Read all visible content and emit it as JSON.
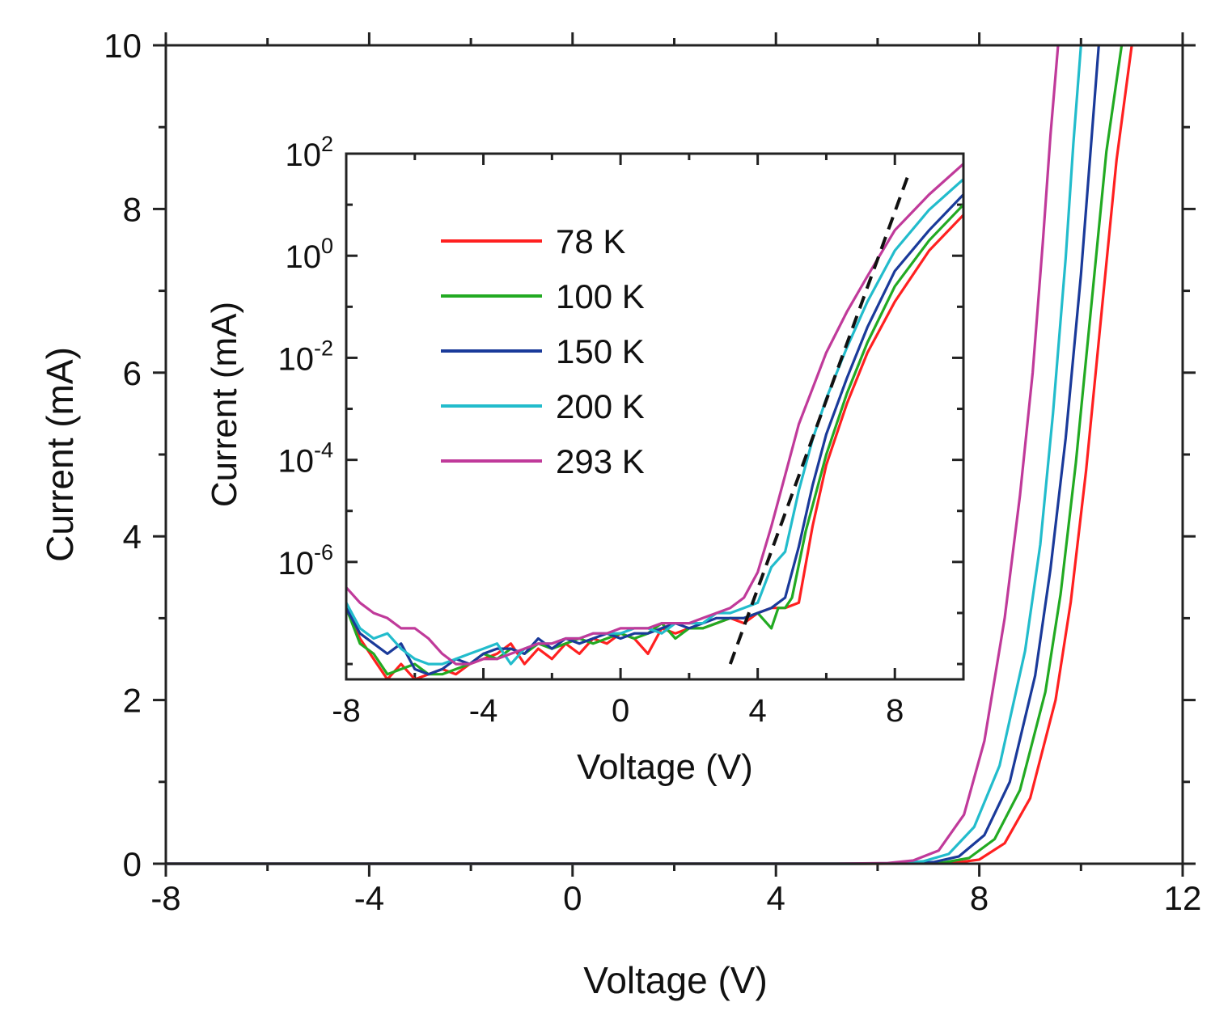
{
  "chart_data": [
    {
      "id": "main",
      "type": "line",
      "title": "",
      "xlabel": "Voltage (V)",
      "ylabel": "Current (mA)",
      "xlim": [
        -8,
        12
      ],
      "ylim": [
        0,
        10
      ],
      "xticks": [
        -8,
        -4,
        0,
        4,
        8,
        12
      ],
      "yticks": [
        0,
        2,
        4,
        6,
        8,
        10
      ],
      "xtick_labels": [
        "-8",
        "-4",
        "0",
        "4",
        "8",
        "12"
      ],
      "ytick_labels": [
        "0",
        "2",
        "4",
        "6",
        "8",
        "10"
      ],
      "series": [
        {
          "name": "78 K",
          "color": "#ff2020",
          "x": [
            -8,
            6,
            7,
            7.5,
            8,
            8.5,
            9,
            9.5,
            9.8,
            10.1,
            10.4,
            10.7,
            11.0
          ],
          "y": [
            0,
            0,
            0.002,
            0.01,
            0.05,
            0.25,
            0.8,
            2.0,
            3.2,
            4.8,
            6.7,
            8.6,
            10.0
          ]
        },
        {
          "name": "100 K",
          "color": "#22aa22",
          "x": [
            -8,
            5.8,
            6.8,
            7.3,
            7.8,
            8.3,
            8.8,
            9.3,
            9.6,
            9.9,
            10.2,
            10.5,
            10.8
          ],
          "y": [
            0,
            0,
            0.003,
            0.015,
            0.07,
            0.3,
            0.9,
            2.1,
            3.3,
            4.9,
            6.8,
            8.7,
            10.0
          ]
        },
        {
          "name": "150 K",
          "color": "#1a3a9a",
          "x": [
            -8,
            5.6,
            6.6,
            7.1,
            7.6,
            8.1,
            8.6,
            9.1,
            9.4,
            9.7,
            10.0,
            10.2,
            10.35
          ],
          "y": [
            0,
            0,
            0.004,
            0.02,
            0.09,
            0.35,
            1.0,
            2.3,
            3.6,
            5.2,
            7.2,
            8.8,
            10.0
          ]
        },
        {
          "name": "200 K",
          "color": "#22bccc",
          "x": [
            -8,
            5.4,
            6.4,
            6.9,
            7.4,
            7.9,
            8.4,
            8.9,
            9.2,
            9.45,
            9.7,
            9.85,
            10.0
          ],
          "y": [
            0,
            0,
            0.006,
            0.03,
            0.12,
            0.45,
            1.2,
            2.6,
            3.9,
            5.5,
            7.4,
            8.8,
            10.0
          ]
        },
        {
          "name": "293 K",
          "color": "#c03a9a",
          "x": [
            -8,
            5.2,
            6.2,
            6.7,
            7.2,
            7.7,
            8.1,
            8.5,
            8.8,
            9.05,
            9.25,
            9.4,
            9.55
          ],
          "y": [
            0,
            0,
            0.008,
            0.04,
            0.16,
            0.6,
            1.5,
            3.0,
            4.5,
            6.0,
            7.6,
            8.9,
            10.0
          ]
        }
      ]
    },
    {
      "id": "inset",
      "type": "line",
      "title": "",
      "xlabel": "Voltage (V)",
      "ylabel": "Current (mA)",
      "yscale": "log",
      "xlim": [
        -8,
        10
      ],
      "ylim_log10": [
        -8.3,
        2
      ],
      "xticks": [
        -8,
        -4,
        0,
        4,
        8
      ],
      "xtick_labels": [
        "-8",
        "-4",
        "0",
        "4",
        "8"
      ],
      "yticks_log10": [
        2,
        0,
        -2,
        -4,
        -6
      ],
      "ytick_base": "10",
      "ytick_exponents": [
        "2",
        "0",
        "-2",
        "-4",
        "-6"
      ],
      "legend_position": "upper-left",
      "dashed_fit": {
        "x": [
          3.2,
          8.4
        ],
        "log10_y": [
          -8.0,
          1.6
        ],
        "color": "#111111"
      },
      "series": [
        {
          "name": "78 K",
          "color": "#ff2020",
          "x": [
            -8,
            -7.6,
            -7.2,
            -6.8,
            -6.4,
            -6.0,
            -5.6,
            -5.2,
            -4.8,
            -4.4,
            -4.0,
            -3.6,
            -3.2,
            -2.8,
            -2.4,
            -2.0,
            -1.6,
            -1.2,
            -0.8,
            -0.4,
            0,
            0.4,
            0.8,
            1.2,
            1.6,
            2.0,
            2.4,
            2.8,
            3.2,
            3.6,
            4.0,
            4.4,
            4.8,
            5.2,
            5.6,
            6.0,
            6.6,
            7.2,
            8.0,
            9.0,
            10.0
          ],
          "log10_y": [
            -6.9,
            -7.5,
            -7.9,
            -8.3,
            -8.0,
            -8.3,
            -8.2,
            -8.1,
            -8.2,
            -8.0,
            -7.9,
            -7.8,
            -7.6,
            -8.0,
            -7.7,
            -7.9,
            -7.6,
            -7.8,
            -7.5,
            -7.6,
            -7.4,
            -7.5,
            -7.8,
            -7.3,
            -7.4,
            -7.3,
            -7.3,
            -7.2,
            -7.1,
            -7.2,
            -7.0,
            -6.9,
            -6.9,
            -6.8,
            -5.3,
            -4.1,
            -2.9,
            -1.9,
            -0.9,
            0.1,
            0.8
          ]
        },
        {
          "name": "100 K",
          "color": "#22aa22",
          "x": [
            -8,
            -7.6,
            -7.2,
            -6.8,
            -6.4,
            -6.0,
            -5.6,
            -5.2,
            -4.8,
            -4.4,
            -4.0,
            -3.6,
            -3.2,
            -2.8,
            -2.4,
            -2.0,
            -1.6,
            -1.2,
            -0.8,
            -0.4,
            0,
            0.4,
            0.8,
            1.2,
            1.6,
            2.0,
            2.4,
            2.8,
            3.2,
            3.6,
            4.0,
            4.4,
            4.6,
            4.8,
            5.0,
            5.4,
            6.0,
            6.6,
            7.2,
            8.0,
            9.0,
            10.0
          ],
          "log10_y": [
            -6.9,
            -7.6,
            -7.8,
            -8.2,
            -8.1,
            -8.0,
            -8.2,
            -8.2,
            -8.1,
            -8.0,
            -7.8,
            -7.9,
            -7.7,
            -7.8,
            -7.6,
            -7.7,
            -7.6,
            -7.5,
            -7.6,
            -7.5,
            -7.4,
            -7.5,
            -7.4,
            -7.2,
            -7.5,
            -7.3,
            -7.3,
            -7.2,
            -7.1,
            -7.1,
            -7.0,
            -7.3,
            -6.9,
            -6.9,
            -6.7,
            -5.4,
            -3.9,
            -2.7,
            -1.7,
            -0.6,
            0.3,
            1.0
          ]
        },
        {
          "name": "150 K",
          "color": "#1a3a9a",
          "x": [
            -8,
            -7.6,
            -7.2,
            -6.8,
            -6.4,
            -6.0,
            -5.6,
            -5.2,
            -4.8,
            -4.4,
            -4.0,
            -3.6,
            -3.2,
            -2.8,
            -2.4,
            -2.0,
            -1.6,
            -1.2,
            -0.8,
            -0.4,
            0,
            0.4,
            0.8,
            1.2,
            1.6,
            2.0,
            2.4,
            2.8,
            3.2,
            3.6,
            4.0,
            4.4,
            4.8,
            5.2,
            5.6,
            6.0,
            6.6,
            7.2,
            8.0,
            9.0,
            10.0
          ],
          "log10_y": [
            -6.9,
            -7.4,
            -7.6,
            -7.8,
            -7.6,
            -8.1,
            -8.2,
            -8.1,
            -7.9,
            -8.0,
            -7.8,
            -7.7,
            -7.7,
            -7.8,
            -7.5,
            -7.7,
            -7.5,
            -7.6,
            -7.5,
            -7.4,
            -7.5,
            -7.4,
            -7.4,
            -7.3,
            -7.2,
            -7.3,
            -7.2,
            -7.1,
            -7.1,
            -7.1,
            -7.0,
            -6.9,
            -6.7,
            -5.7,
            -4.5,
            -3.5,
            -2.4,
            -1.4,
            -0.3,
            0.5,
            1.2
          ]
        },
        {
          "name": "200 K",
          "color": "#22bccc",
          "x": [
            -8,
            -7.6,
            -7.2,
            -6.8,
            -6.4,
            -6.0,
            -5.6,
            -5.2,
            -4.8,
            -4.4,
            -4.0,
            -3.6,
            -3.2,
            -2.8,
            -2.4,
            -2.0,
            -1.6,
            -1.2,
            -0.8,
            -0.4,
            0,
            0.4,
            0.8,
            1.2,
            1.6,
            2.0,
            2.4,
            2.8,
            3.2,
            3.6,
            4.0,
            4.4,
            4.8,
            5.2,
            5.6,
            6.0,
            6.6,
            7.2,
            8.0,
            9.0,
            10.0
          ],
          "log10_y": [
            -6.8,
            -7.3,
            -7.5,
            -7.4,
            -7.7,
            -7.9,
            -8.0,
            -8.0,
            -7.9,
            -7.8,
            -7.7,
            -7.6,
            -8.0,
            -7.7,
            -7.6,
            -7.6,
            -7.5,
            -7.5,
            -7.4,
            -7.4,
            -7.4,
            -7.3,
            -7.3,
            -7.4,
            -7.2,
            -7.2,
            -7.2,
            -7.0,
            -7.0,
            -6.9,
            -6.8,
            -6.1,
            -5.8,
            -4.6,
            -3.6,
            -2.8,
            -1.8,
            -0.9,
            0.1,
            0.9,
            1.5
          ]
        },
        {
          "name": "293 K",
          "color": "#c03a9a",
          "x": [
            -8,
            -7.6,
            -7.2,
            -6.8,
            -6.4,
            -6.0,
            -5.6,
            -5.2,
            -4.8,
            -4.4,
            -4.0,
            -3.6,
            -3.2,
            -2.8,
            -2.4,
            -2.0,
            -1.6,
            -1.2,
            -0.8,
            -0.4,
            0,
            0.4,
            0.8,
            1.2,
            1.6,
            2.0,
            2.4,
            2.8,
            3.2,
            3.6,
            4.0,
            4.4,
            4.8,
            5.2,
            5.6,
            6.0,
            6.6,
            7.2,
            8.0,
            9.0,
            10.0
          ],
          "log10_y": [
            -6.5,
            -6.8,
            -7.0,
            -7.1,
            -7.3,
            -7.3,
            -7.5,
            -7.8,
            -8.0,
            -8.0,
            -7.9,
            -7.9,
            -7.8,
            -7.7,
            -7.6,
            -7.6,
            -7.5,
            -7.5,
            -7.4,
            -7.4,
            -7.3,
            -7.3,
            -7.3,
            -7.2,
            -7.2,
            -7.2,
            -7.1,
            -7.0,
            -6.9,
            -6.7,
            -6.2,
            -5.3,
            -4.3,
            -3.3,
            -2.6,
            -1.9,
            -1.1,
            -0.4,
            0.5,
            1.2,
            1.8
          ]
        }
      ]
    }
  ]
}
